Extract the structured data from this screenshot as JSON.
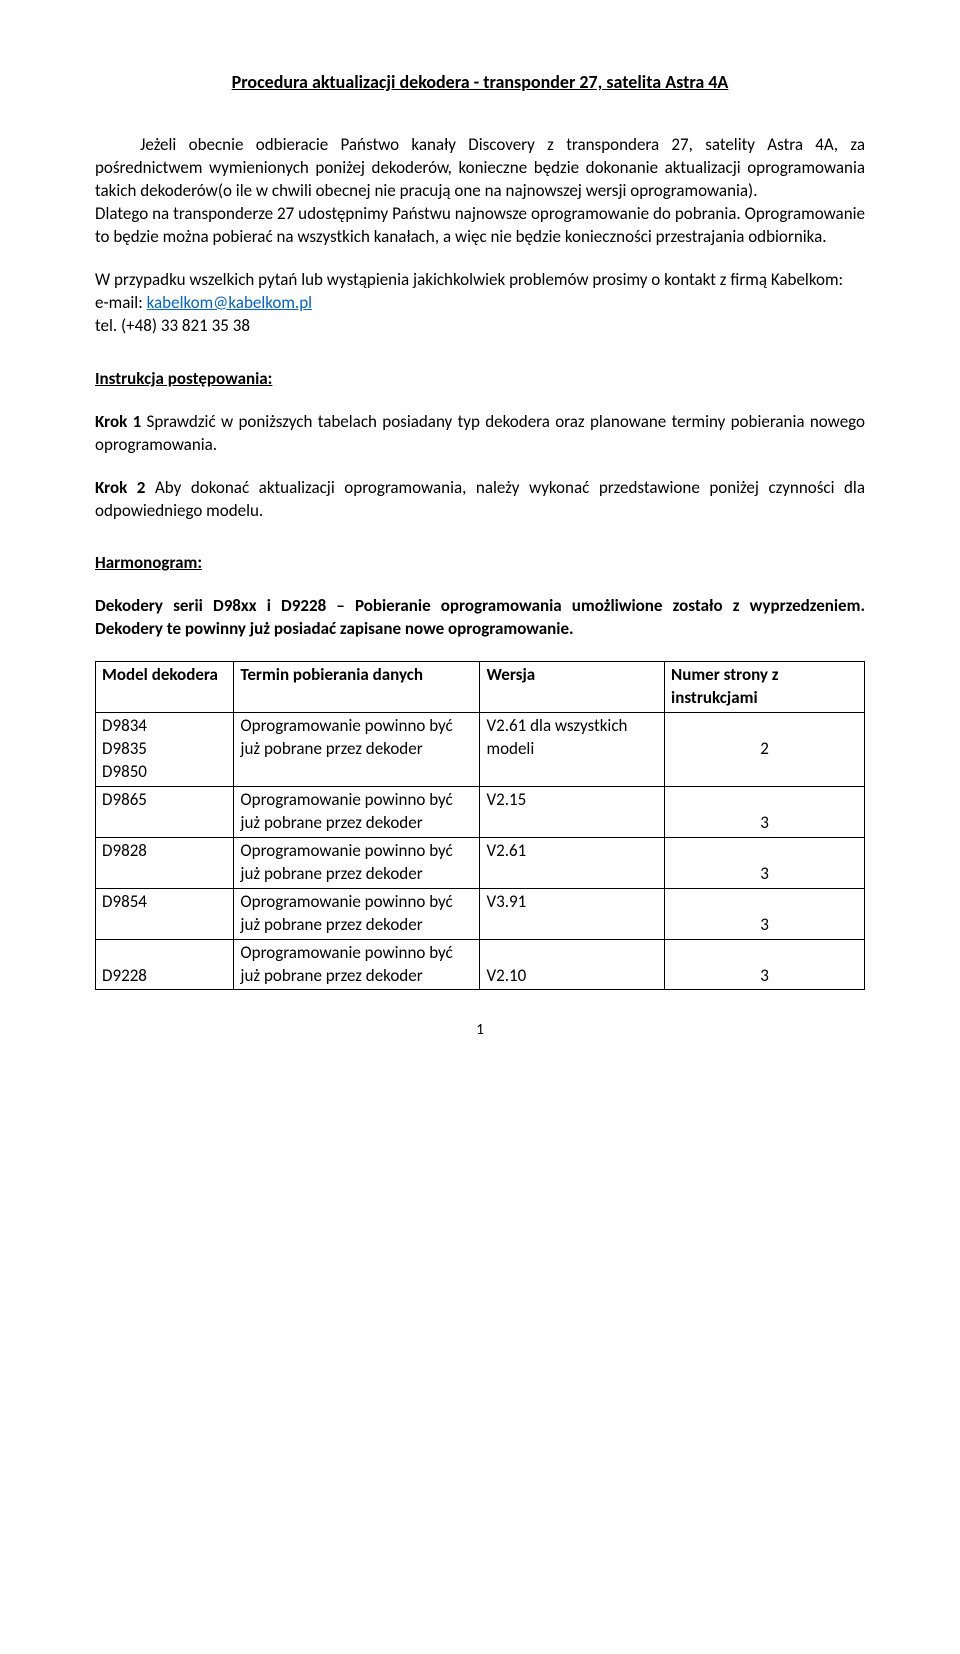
{
  "title": "Procedura aktualizacji dekodera -  transponder 27, satelita Astra 4A",
  "p1": "Jeżeli obecnie odbieracie Państwo kanały Discovery z transpondera 27, satelity Astra 4A, za pośrednictwem wymienionych poniżej dekoderów, konieczne będzie dokonanie  aktualizacji oprogramowania takich dekoderów(o ile w chwili obecnej nie pracują one na najnowszej wersji oprogramowania).",
  "p2": "Dlatego na transponderze 27 udostępnimy Państwu najnowsze oprogramowanie do pobrania. Oprogramowanie to będzie można pobierać na wszystkich kanałach, a więc nie będzie konieczności przestrajania odbiornika.",
  "p3a": "W przypadku wszelkich pytań lub wystąpienia jakichkolwiek problemów prosimy o kontakt z firmą Kabelkom:",
  "email_label": "e-mail: ",
  "email_link": "kabelkom@kabelkom.pl",
  "tel": "tel. (+48) 33 821 35 38",
  "instr_heading": "Instrukcja postępowania:",
  "krok1_bold": "Krok 1",
  "krok1_text": " Sprawdzić w poniższych tabelach posiadany typ dekodera oraz planowane terminy pobierania nowego oprogramowania.",
  "krok2_bold": "Krok 2",
  "krok2_text": " Aby dokonać aktualizacji oprogramowania, należy wykonać przedstawione poniżej czynności dla odpowiedniego modelu.",
  "harm_heading": "Harmonogram:",
  "series_note": "Dekodery serii D98xx i D9228 – Pobieranie oprogramowania umożliwione zostało z wyprzedzeniem. Dekodery te powinny już posiadać zapisane nowe oprogramowanie.",
  "table": {
    "headers": {
      "model": "Model dekodera",
      "term": "Termin pobierania danych",
      "ver": "Wersja",
      "page": "Numer strony z instrukcjami"
    },
    "term_text": "Oprogramowanie powinno być już pobrane przez dekoder",
    "rows": [
      {
        "models": [
          "D9834",
          "D9835",
          "D9850"
        ],
        "ver": "V2.61 dla wszystkich modeli",
        "page": "2"
      },
      {
        "models": [
          "D9865"
        ],
        "ver": "V2.15",
        "page": "3"
      },
      {
        "models": [
          "D9828"
        ],
        "ver": "V2.61",
        "page": "3"
      },
      {
        "models": [
          "D9854"
        ],
        "ver": "V3.91",
        "page": "3"
      },
      {
        "models": [
          "D9228"
        ],
        "ver": "V2.10",
        "page": "3"
      }
    ]
  },
  "page_number": "1"
}
